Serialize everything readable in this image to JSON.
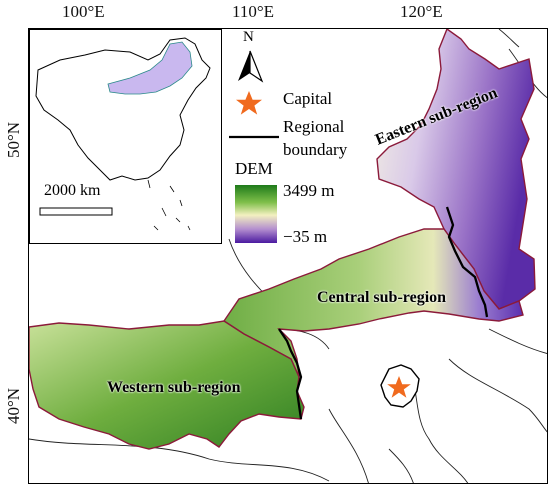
{
  "axes": {
    "longitude_ticks": [
      "100°E",
      "110°E",
      "120°E"
    ],
    "latitude_ticks": [
      "50°N",
      "40°N"
    ]
  },
  "inset": {
    "scale_label": "2000 km"
  },
  "legend": {
    "north": "N",
    "capital_label": "Capital",
    "boundary_label_line1": "Regional",
    "boundary_label_line2": "boundary",
    "dem_title": "DEM",
    "dem_max": "3499 m",
    "dem_min": "−35 m"
  },
  "regions": {
    "eastern": "Eastern sub-region",
    "central": "Central sub-region",
    "western": "Western sub-region"
  },
  "colors": {
    "dem_high": "#1e7a1a",
    "dem_mid": "#f3f0c0",
    "dem_low": "#4a1aa0",
    "capital_star": "#f06a1e",
    "region_outline": "#8b1a3a",
    "inset_highlight": "#c9b8ef"
  }
}
